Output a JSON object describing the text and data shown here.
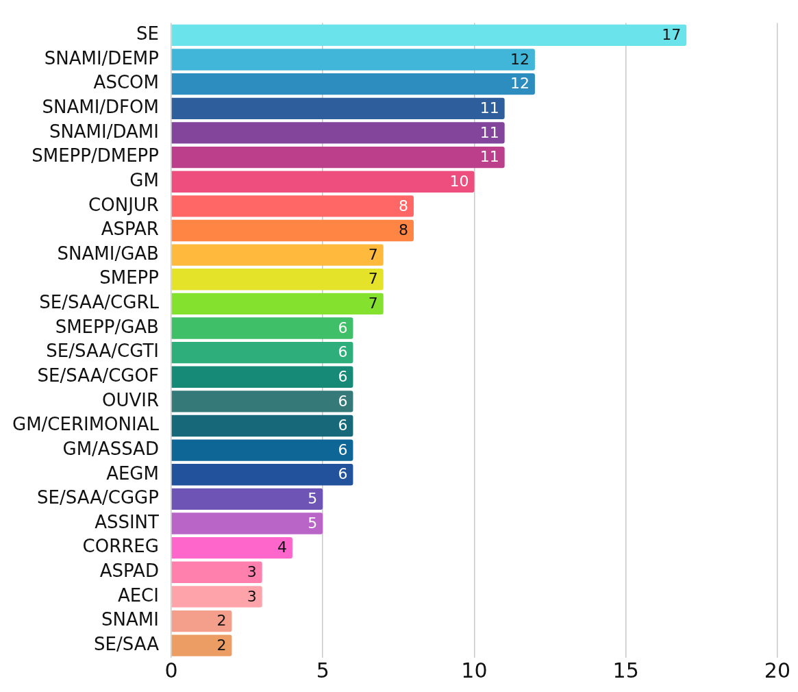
{
  "chart_data": {
    "type": "bar",
    "orientation": "horizontal",
    "categories": [
      "SE",
      "SNAMI/DEMP",
      "ASCOM",
      "SNAMI/DFOM",
      "SNAMI/DAMI",
      "SMEPP/DMEPP",
      "GM",
      "CONJUR",
      "ASPAR",
      "SNAMI/GAB",
      "SMEPP",
      "SE/SAA/CGRL",
      "SMEPP/GAB",
      "SE/SAA/CGTI",
      "SE/SAA/CGOF",
      "OUVIR",
      "GM/CERIMONIAL",
      "GM/ASSAD",
      "AEGM",
      "SE/SAA/CGGP",
      "ASSINT",
      "CORREG",
      "ASPAD",
      "AECI",
      "SNAMI",
      "SE/SAA"
    ],
    "values": [
      17,
      12,
      12,
      11,
      11,
      11,
      10,
      8,
      8,
      7,
      7,
      7,
      6,
      6,
      6,
      6,
      6,
      6,
      6,
      5,
      5,
      4,
      3,
      3,
      2,
      2
    ],
    "colors": [
      "#6ae4ea",
      "#41b6d8",
      "#2e8dbf",
      "#2e5f9c",
      "#83459b",
      "#bb3f8a",
      "#ee4e7e",
      "#ff6666",
      "#ff8544",
      "#ffb93c",
      "#e5e22a",
      "#84e22e",
      "#3fbf68",
      "#2eae7a",
      "#168a76",
      "#357a78",
      "#17697a",
      "#0d6696",
      "#22529b",
      "#6e55b5",
      "#b965c8",
      "#ff66cc",
      "#ff7fad",
      "#ffa3ab",
      "#f49e8c",
      "#ec9d63"
    ],
    "xlim": [
      0,
      20
    ],
    "xticks": [
      0,
      5,
      10,
      15,
      20
    ],
    "grid": "x",
    "data_labels": true,
    "legend": false
  }
}
